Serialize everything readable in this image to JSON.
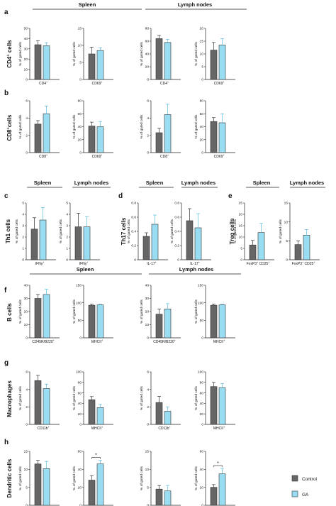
{
  "colors": {
    "control": "#666666",
    "ga": "#99ddf2",
    "axis": "#222222",
    "text": "#111111"
  },
  "legend": [
    {
      "name": "Control",
      "color": "#666666"
    },
    {
      "name": "GA",
      "color": "#99ddf2"
    }
  ],
  "chart_data": [
    {
      "type": "bar",
      "panel": "a",
      "group": "Spleen",
      "row_label": "CD4+ cells",
      "ylabel": "% of gated cells",
      "ylim": [
        0,
        50
      ],
      "yticks": [
        0,
        10,
        20,
        30,
        40,
        50
      ],
      "categories": [
        "CD4+"
      ],
      "series": [
        {
          "name": "Control",
          "values": [
            34
          ],
          "errors": [
            4
          ]
        },
        {
          "name": "GA",
          "values": [
            33
          ],
          "errors": [
            3
          ]
        }
      ]
    },
    {
      "type": "bar",
      "panel": "a",
      "group": "Spleen",
      "row_label": "CD4+ cells",
      "ylabel": "% of gated cells",
      "ylim": [
        0,
        15
      ],
      "yticks": [
        0,
        5,
        10,
        15
      ],
      "categories": [
        "CD69+"
      ],
      "series": [
        {
          "name": "Control",
          "values": [
            7.5
          ],
          "errors": [
            2
          ]
        },
        {
          "name": "GA",
          "values": [
            8.5
          ],
          "errors": [
            0.8
          ]
        }
      ]
    },
    {
      "type": "bar",
      "panel": "a",
      "group": "Lymph nodes",
      "row_label": "CD4+ cells",
      "ylabel": "% of gated cells",
      "ylim": [
        0,
        80
      ],
      "yticks": [
        0,
        20,
        40,
        60,
        80
      ],
      "categories": [
        "CD4+"
      ],
      "series": [
        {
          "name": "Control",
          "values": [
            64
          ],
          "errors": [
            5
          ]
        },
        {
          "name": "GA",
          "values": [
            58
          ],
          "errors": [
            5
          ]
        }
      ]
    },
    {
      "type": "bar",
      "panel": "a",
      "group": "Lymph nodes",
      "row_label": "CD4+ cells",
      "ylabel": "% of gated cells",
      "ylim": [
        0,
        20
      ],
      "yticks": [
        0,
        5,
        10,
        15,
        20
      ],
      "categories": [
        "CD69+"
      ],
      "series": [
        {
          "name": "Control",
          "values": [
            11.5
          ],
          "errors": [
            3
          ]
        },
        {
          "name": "GA",
          "values": [
            13.5
          ],
          "errors": [
            2.5
          ]
        }
      ]
    },
    {
      "type": "bar",
      "panel": "b",
      "group": "Spleen",
      "row_label": "CD8+ cells",
      "ylabel": "% of gated cells",
      "ylim": [
        0,
        6
      ],
      "yticks": [
        0,
        2,
        4,
        6
      ],
      "categories": [
        "CD8+"
      ],
      "series": [
        {
          "name": "Control",
          "values": [
            3.3
          ],
          "errors": [
            0.4
          ]
        },
        {
          "name": "GA",
          "values": [
            4.5
          ],
          "errors": [
            0.9
          ]
        }
      ]
    },
    {
      "type": "bar",
      "panel": "b",
      "group": "Spleen",
      "row_label": "CD8+ cells",
      "ylabel": "% of gated cells",
      "ylim": [
        0,
        80
      ],
      "yticks": [
        0,
        20,
        40,
        60,
        80
      ],
      "categories": [
        "CD69+"
      ],
      "series": [
        {
          "name": "Control",
          "values": [
            41
          ],
          "errors": [
            6
          ]
        },
        {
          "name": "GA",
          "values": [
            40
          ],
          "errors": [
            8
          ]
        }
      ]
    },
    {
      "type": "bar",
      "panel": "b",
      "group": "Lymph nodes",
      "row_label": "CD8+ cells",
      "ylabel": "% of gated cells",
      "ylim": [
        0,
        6
      ],
      "yticks": [
        0,
        2,
        4,
        6
      ],
      "categories": [
        "CD8+"
      ],
      "series": [
        {
          "name": "Control",
          "values": [
            2.3
          ],
          "errors": [
            0.5
          ]
        },
        {
          "name": "GA",
          "values": [
            4.4
          ],
          "errors": [
            1.2
          ]
        }
      ]
    },
    {
      "type": "bar",
      "panel": "b",
      "group": "Lymph nodes",
      "row_label": "CD8+ cells",
      "ylabel": "% of gated cells",
      "ylim": [
        0,
        80
      ],
      "yticks": [
        0,
        20,
        40,
        60,
        80
      ],
      "categories": [
        "CD69+"
      ],
      "series": [
        {
          "name": "Control",
          "values": [
            48
          ],
          "errors": [
            6
          ]
        },
        {
          "name": "GA",
          "values": [
            46
          ],
          "errors": [
            14
          ]
        }
      ]
    },
    {
      "type": "bar",
      "panel": "c",
      "group": "Spleen",
      "row_label": "Th1 cells",
      "ylabel": "% of gated cells",
      "ylim": [
        0,
        5
      ],
      "yticks": [
        0,
        1,
        2,
        3,
        4,
        5
      ],
      "categories": [
        "IFNγ+"
      ],
      "series": [
        {
          "name": "Control",
          "values": [
            2.7
          ],
          "errors": [
            1.0
          ]
        },
        {
          "name": "GA",
          "values": [
            3.5
          ],
          "errors": [
            1.1
          ]
        }
      ]
    },
    {
      "type": "bar",
      "panel": "c",
      "group": "Lymph nodes",
      "row_label": "Th1 cells",
      "ylabel": "% of gated cells",
      "ylim": [
        0,
        5
      ],
      "yticks": [
        0,
        1,
        2,
        3,
        4,
        5
      ],
      "categories": [
        "IFNγ+"
      ],
      "series": [
        {
          "name": "Control",
          "values": [
            2.9
          ],
          "errors": [
            1.2
          ]
        },
        {
          "name": "GA",
          "values": [
            2.9
          ],
          "errors": [
            0.9
          ]
        }
      ]
    },
    {
      "type": "bar",
      "panel": "d",
      "group": "Spleen",
      "row_label": "Th17 cells",
      "ylabel": "% of gated cells",
      "ylim": [
        0,
        0.8
      ],
      "yticks": [
        0,
        0.2,
        0.4,
        0.6,
        0.8
      ],
      "categories": [
        "IL-17+"
      ],
      "series": [
        {
          "name": "Control",
          "values": [
            0.33
          ],
          "errors": [
            0.05
          ]
        },
        {
          "name": "GA",
          "values": [
            0.5
          ],
          "errors": [
            0.13
          ]
        }
      ]
    },
    {
      "type": "bar",
      "panel": "d",
      "group": "Lymph nodes",
      "row_label": "Th17 cells",
      "ylabel": "% of gated cells",
      "ylim": [
        0,
        0.8
      ],
      "yticks": [
        0,
        0.2,
        0.4,
        0.6,
        0.8
      ],
      "categories": [
        "IL-17+"
      ],
      "series": [
        {
          "name": "Control",
          "values": [
            0.55
          ],
          "errors": [
            0.17
          ]
        },
        {
          "name": "GA",
          "values": [
            0.45
          ],
          "errors": [
            0.2
          ]
        }
      ]
    },
    {
      "type": "bar",
      "panel": "e",
      "group": "Spleen",
      "row_label": "Treg cells",
      "ylabel": "% of gated cells",
      "ylim": [
        0,
        25
      ],
      "yticks": [
        0,
        5,
        10,
        15,
        20,
        25
      ],
      "categories": [
        "FoxP3+ CD25+"
      ],
      "series": [
        {
          "name": "Control",
          "values": [
            6.5
          ],
          "errors": [
            2
          ]
        },
        {
          "name": "GA",
          "values": [
            12
          ],
          "errors": [
            4
          ]
        }
      ]
    },
    {
      "type": "bar",
      "panel": "e",
      "group": "Lymph nodes",
      "row_label": "Treg cells",
      "ylabel": "% of gated cells",
      "ylim": [
        0,
        15
      ],
      "yticks": [
        0,
        5,
        10,
        15
      ],
      "categories": [
        "FoxP3+ CD25+"
      ],
      "series": [
        {
          "name": "Control",
          "values": [
            4
          ],
          "errors": [
            1
          ]
        },
        {
          "name": "GA",
          "values": [
            6.5
          ],
          "errors": [
            1.5
          ]
        }
      ]
    },
    {
      "type": "bar",
      "panel": "f",
      "group": "Spleen",
      "row_label": "B cells",
      "ylabel": "% of gated cells",
      "ylim": [
        0,
        40
      ],
      "yticks": [
        0,
        10,
        20,
        30,
        40
      ],
      "categories": [
        "CD45R/B220+"
      ],
      "series": [
        {
          "name": "Control",
          "values": [
            30
          ],
          "errors": [
            3
          ]
        },
        {
          "name": "GA",
          "values": [
            33
          ],
          "errors": [
            4
          ]
        }
      ]
    },
    {
      "type": "bar",
      "panel": "f",
      "group": "Spleen",
      "row_label": "B cells",
      "ylabel": "% of gated cells",
      "ylim": [
        0,
        150
      ],
      "yticks": [
        0,
        50,
        100,
        150
      ],
      "categories": [
        "MHCII+"
      ],
      "series": [
        {
          "name": "Control",
          "values": [
            93
          ],
          "errors": [
            3
          ]
        },
        {
          "name": "GA",
          "values": [
            94
          ],
          "errors": [
            2
          ]
        }
      ]
    },
    {
      "type": "bar",
      "panel": "f",
      "group": "Lymph nodes",
      "row_label": "B cells",
      "ylabel": "% of gated cells",
      "ylim": [
        0,
        40
      ],
      "yticks": [
        0,
        10,
        20,
        30,
        40
      ],
      "categories": [
        "CD45R/B220+"
      ],
      "series": [
        {
          "name": "Control",
          "values": [
            18
          ],
          "errors": [
            4
          ]
        },
        {
          "name": "GA",
          "values": [
            22
          ],
          "errors": [
            4
          ]
        }
      ]
    },
    {
      "type": "bar",
      "panel": "f",
      "group": "Lymph nodes",
      "row_label": "B cells",
      "ylabel": "% of gated cells",
      "ylim": [
        0,
        150
      ],
      "yticks": [
        0,
        50,
        100,
        150
      ],
      "categories": [
        "MHCII+"
      ],
      "series": [
        {
          "name": "Control",
          "values": [
            93
          ],
          "errors": [
            3
          ]
        },
        {
          "name": "GA",
          "values": [
            94
          ],
          "errors": [
            2
          ]
        }
      ]
    },
    {
      "type": "bar",
      "panel": "g",
      "group": "Spleen",
      "row_label": "Macrophages",
      "ylabel": "% of gated cells",
      "ylim": [
        0,
        6
      ],
      "yticks": [
        0,
        2,
        4,
        6
      ],
      "categories": [
        "CD11b+"
      ],
      "series": [
        {
          "name": "Control",
          "values": [
            5
          ],
          "errors": [
            0.6
          ]
        },
        {
          "name": "GA",
          "values": [
            4.1
          ],
          "errors": [
            0.5
          ]
        }
      ]
    },
    {
      "type": "bar",
      "panel": "g",
      "group": "Spleen",
      "row_label": "Macrophages",
      "ylabel": "% of gated cells",
      "ylim": [
        0,
        100
      ],
      "yticks": [
        0,
        20,
        40,
        60,
        80,
        100
      ],
      "categories": [
        "MHCII+"
      ],
      "series": [
        {
          "name": "Control",
          "values": [
            47
          ],
          "errors": [
            6
          ]
        },
        {
          "name": "GA",
          "values": [
            32
          ],
          "errors": [
            6
          ]
        }
      ]
    },
    {
      "type": "bar",
      "panel": "g",
      "group": "Lymph nodes",
      "row_label": "Macrophages",
      "ylabel": "% of gated cells",
      "ylim": [
        0,
        6
      ],
      "yticks": [
        0,
        2,
        4,
        6
      ],
      "categories": [
        "CD11b+"
      ],
      "series": [
        {
          "name": "Control",
          "values": [
            2.5
          ],
          "errors": [
            0.7
          ]
        },
        {
          "name": "GA",
          "values": [
            1.5
          ],
          "errors": [
            0.5
          ]
        }
      ]
    },
    {
      "type": "bar",
      "panel": "g",
      "group": "Lymph nodes",
      "row_label": "Macrophages",
      "ylabel": "% of gated cells",
      "ylim": [
        0,
        100
      ],
      "yticks": [
        0,
        20,
        40,
        60,
        80,
        100
      ],
      "categories": [
        "MHCII+"
      ],
      "series": [
        {
          "name": "Control",
          "values": [
            72
          ],
          "errors": [
            8
          ]
        },
        {
          "name": "GA",
          "values": [
            70
          ],
          "errors": [
            8
          ]
        }
      ]
    },
    {
      "type": "bar",
      "panel": "h",
      "group": "Spleen",
      "row_label": "Dendritic cells",
      "ylabel": "% of gated cells",
      "ylim": [
        0,
        15
      ],
      "yticks": [
        0,
        5,
        10,
        15
      ],
      "categories": [
        "CD11c+"
      ],
      "series": [
        {
          "name": "Control",
          "values": [
            11.5
          ],
          "errors": [
            1
          ]
        },
        {
          "name": "GA",
          "values": [
            10.2
          ],
          "errors": [
            2
          ]
        }
      ]
    },
    {
      "type": "bar",
      "panel": "h",
      "group": "Spleen",
      "row_label": "Dendritic cells",
      "ylabel": "% of gated cells",
      "ylim": [
        0,
        60
      ],
      "yticks": [
        0,
        20,
        40,
        60
      ],
      "categories": [
        "MHCII+"
      ],
      "significance": "*",
      "series": [
        {
          "name": "Control",
          "values": [
            28
          ],
          "errors": [
            5
          ]
        },
        {
          "name": "GA",
          "values": [
            46
          ],
          "errors": [
            4
          ]
        }
      ]
    },
    {
      "type": "bar",
      "panel": "h",
      "group": "Lymph nodes",
      "row_label": "Dendritic cells",
      "ylabel": "% of gated cells",
      "ylim": [
        0,
        15
      ],
      "yticks": [
        0,
        5,
        10,
        15
      ],
      "categories": [
        "CD11c+"
      ],
      "series": [
        {
          "name": "Control",
          "values": [
            4.5
          ],
          "errors": [
            1
          ]
        },
        {
          "name": "GA",
          "values": [
            4
          ],
          "errors": [
            1.5
          ]
        }
      ]
    },
    {
      "type": "bar",
      "panel": "h",
      "group": "Lymph nodes",
      "row_label": "Dendritic cells",
      "ylabel": "% of gated cells",
      "ylim": [
        0,
        60
      ],
      "yticks": [
        0,
        20,
        40,
        60
      ],
      "categories": [
        "MHCII+"
      ],
      "significance": "*",
      "series": [
        {
          "name": "Control",
          "values": [
            20
          ],
          "errors": [
            3
          ]
        },
        {
          "name": "GA",
          "values": [
            35
          ],
          "errors": [
            6
          ]
        }
      ]
    }
  ],
  "panels": [
    {
      "letter": "a",
      "row_label_main": "CD4",
      "row_label_sup": "+",
      "row_label_tail": " cells",
      "headers": [
        {
          "text": "Spleen"
        },
        {
          "text": "Lymph nodes"
        }
      ]
    },
    {
      "letter": "b",
      "row_label_main": "CD8",
      "row_label_sup": "+",
      "row_label_tail": "cells",
      "headers": []
    },
    {
      "letter": "c",
      "row_label_main": "Th1 cells",
      "row_label_sup": "",
      "row_label_tail": "",
      "headers": [
        {
          "text": "Spleen"
        },
        {
          "text": "Lymph nodes"
        }
      ]
    },
    {
      "letter": "d",
      "row_label_main": "Th17 cells",
      "row_label_sup": "",
      "row_label_tail": "",
      "headers": [
        {
          "text": "Spleen"
        },
        {
          "text": "Lymph nodes"
        }
      ]
    },
    {
      "letter": "e",
      "row_label_main": "Treg cells",
      "row_label_sup": "",
      "row_label_tail": "",
      "headers": [
        {
          "text": "Spleen"
        },
        {
          "text": "Lymph nodes"
        }
      ]
    },
    {
      "letter": "f",
      "row_label_main": "B cells",
      "row_label_sup": "",
      "row_label_tail": "",
      "headers": [
        {
          "text": "Spleen"
        },
        {
          "text": "Lymph nodes"
        }
      ]
    },
    {
      "letter": "g",
      "row_label_main": "Macrophages",
      "row_label_sup": "",
      "row_label_tail": "",
      "headers": []
    },
    {
      "letter": "h",
      "row_label_main": "Dendritic cells",
      "row_label_sup": "",
      "row_label_tail": "",
      "headers": []
    }
  ]
}
